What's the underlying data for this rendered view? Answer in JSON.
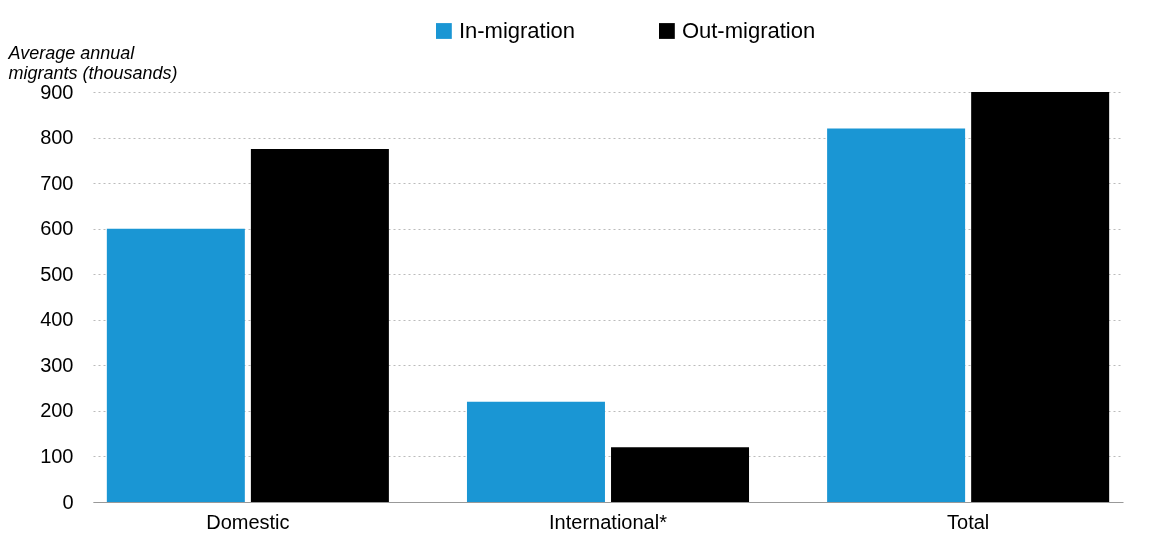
{
  "chart_data": {
    "type": "bar",
    "ylabel": "Average annual migrants (thousands)",
    "categories": [
      "Domestic",
      "International*",
      "Total"
    ],
    "series": [
      {
        "name": "In-migration",
        "color": "#1a96d4",
        "values": [
          600,
          220,
          820
        ]
      },
      {
        "name": "Out-migration",
        "color": "#000000",
        "values": [
          775,
          120,
          900
        ]
      }
    ],
    "ylim": [
      0,
      900
    ],
    "yticks": [
      0,
      100,
      200,
      300,
      400,
      500,
      600,
      700,
      800,
      900
    ],
    "grid": "y",
    "legend": "top"
  }
}
